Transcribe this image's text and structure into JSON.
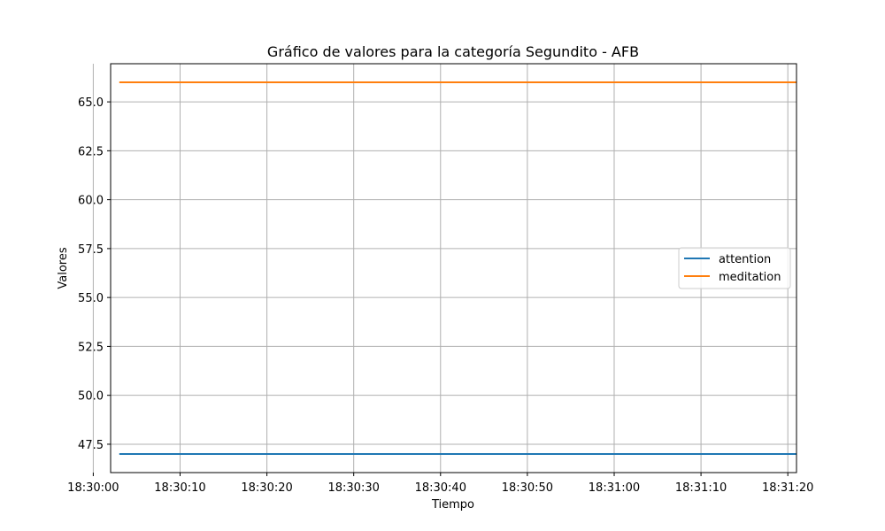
{
  "chart_data": {
    "type": "line",
    "title": "Gráfico de valores para la categoría Segundito - AFB",
    "xlabel": "Tiempo",
    "ylabel": "Valores",
    "x_range": [
      "18:30:02",
      "18:31:21"
    ],
    "ylim": [
      46.05,
      66.95
    ],
    "grid": true,
    "legend_position": "center-right",
    "x_ticks": [
      "18:30:00",
      "18:30:10",
      "18:30:20",
      "18:30:30",
      "18:30:40",
      "18:30:50",
      "18:31:00",
      "18:31:10",
      "18:31:20"
    ],
    "y_ticks": [
      47.5,
      50.0,
      52.5,
      55.0,
      57.5,
      60.0,
      62.5,
      65.0
    ],
    "y_tick_labels": [
      "47.5",
      "50.0",
      "52.5",
      "55.0",
      "57.5",
      "60.0",
      "62.5",
      "65.0"
    ],
    "series": [
      {
        "name": "attention",
        "color": "#1f77b4",
        "x": [
          "18:30:03",
          "18:31:21"
        ],
        "y": [
          47,
          47
        ]
      },
      {
        "name": "meditation",
        "color": "#ff7f0e",
        "x": [
          "18:30:03",
          "18:31:21"
        ],
        "y": [
          66,
          66
        ]
      }
    ]
  }
}
